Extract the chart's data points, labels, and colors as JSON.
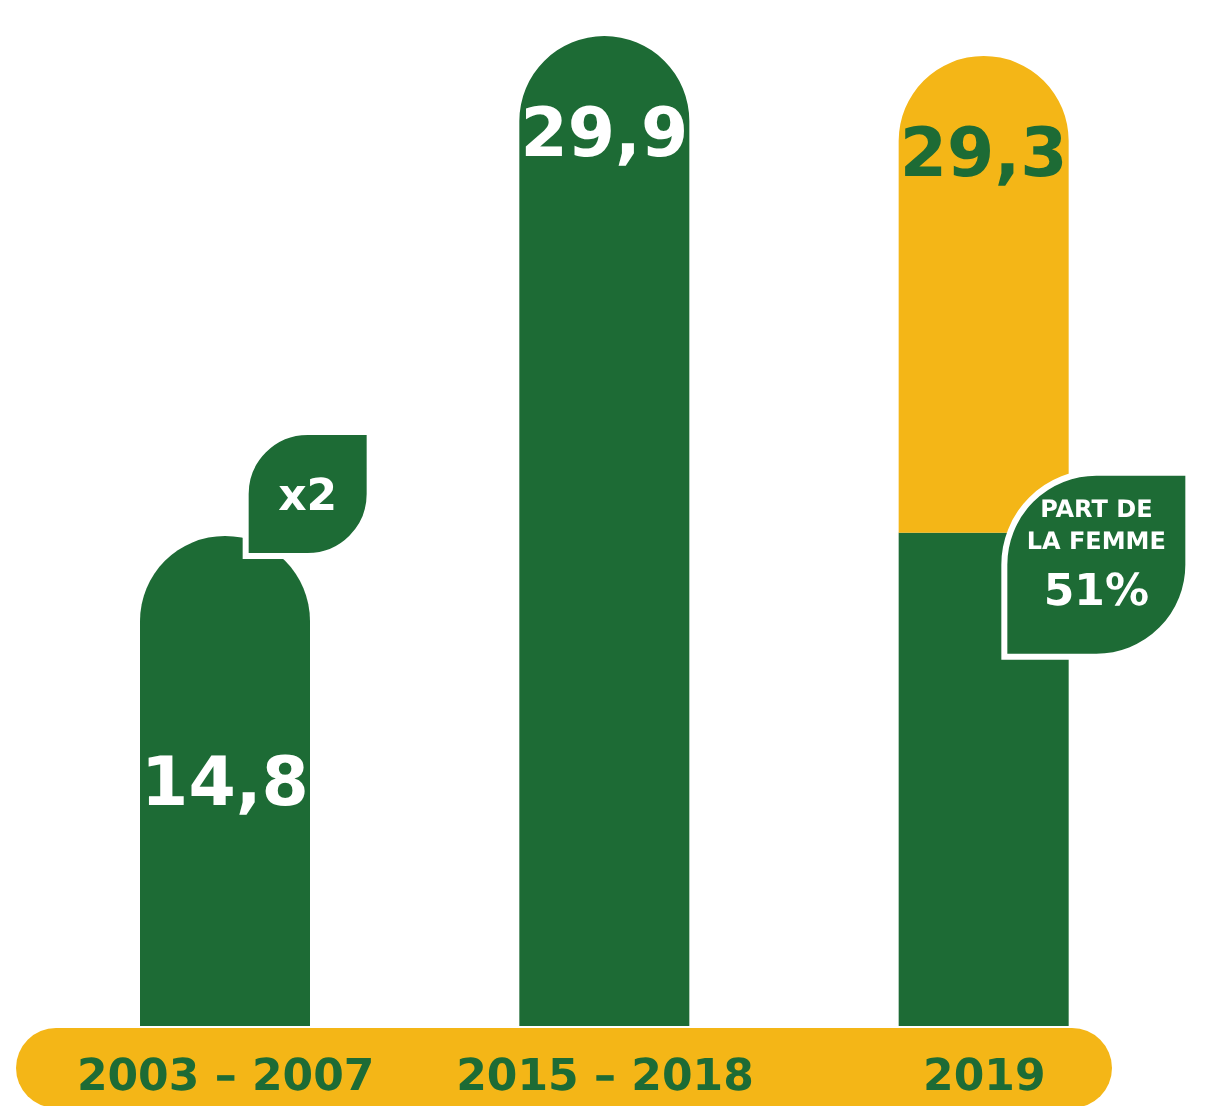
{
  "chart_data": {
    "type": "bar",
    "stacked": true,
    "categories": [
      "2003 – 2007",
      "2015 – 2018",
      "2019"
    ],
    "series": [
      {
        "color": "#1d6b35",
        "values": [
          14.8,
          29.9,
          14.9
        ],
        "value_labels": [
          "14,8",
          "29,9",
          null
        ]
      },
      {
        "color": "#f4b617",
        "values": [
          null,
          null,
          14.4
        ]
      }
    ],
    "totals": [
      null,
      null,
      "29,3"
    ],
    "annotations": [
      {
        "text": "x2",
        "x": "2003 – 2007",
        "y": 14.8
      },
      {
        "text": "PART DE LA FEMME 51%",
        "x": "2019",
        "y": 14.9
      }
    ]
  }
}
